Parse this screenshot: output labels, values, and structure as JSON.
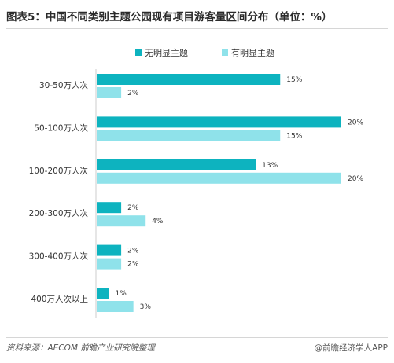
{
  "title": "图表5：中国不同类别主题公园现有项目游客量区间分布（单位：%）",
  "source": "资料来源：AECOM 前瞻产业研究院整理",
  "brand": "@前瞻经济学人APP",
  "colors": {
    "series1": "#0db3bf",
    "series2": "#8fe2ea"
  },
  "chart_data": {
    "type": "bar",
    "orientation": "horizontal",
    "title": "图表5：中国不同类别主题公园现有项目游客量区间分布（单位：%）",
    "categories": [
      "30-50万人次",
      "50-100万人次",
      "100-200万人次",
      "200-300万人次",
      "300-400万人次",
      "400万人次以上"
    ],
    "series": [
      {
        "name": "无明显主题",
        "values": [
          15,
          20,
          13,
          2,
          2,
          1
        ],
        "labels": [
          "15%",
          "20%",
          "13%",
          "2%",
          "2%",
          "1%"
        ]
      },
      {
        "name": "有明显主题",
        "values": [
          2,
          15,
          20,
          4,
          2,
          3
        ],
        "labels": [
          "2%",
          "15%",
          "20%",
          "4%",
          "2%",
          "3%"
        ]
      }
    ],
    "xlim": [
      0,
      20
    ],
    "legend_position": "top",
    "grid": false,
    "unit": "%"
  }
}
